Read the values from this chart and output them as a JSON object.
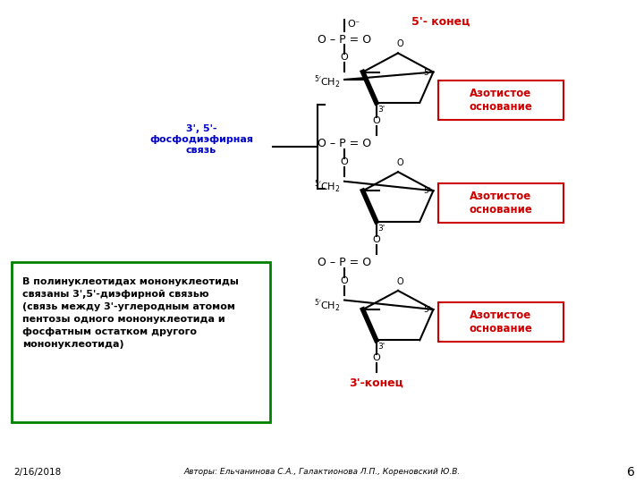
{
  "bg_color": "#ffffff",
  "fig_width": 7.2,
  "fig_height": 5.4,
  "dpi": 100,
  "text_5prime_label": "5'- конец",
  "text_5prime_color": "#cc0000",
  "text_3prime_label": "3'-конец",
  "text_3prime_color": "#cc0000",
  "azot_text": "Азотистое\nоснование",
  "azot_box_color": "#cc0000",
  "azot_box_facecolor": "#ffffff",
  "link_label": "3', 5'-\nфосфодиэфирная\nсвязь",
  "link_label_color": "#0000cc",
  "info_box_text": "В полинуклеотидах мононуклеотиды\nсвязаны 3',5'-диэфирной связью\n(связь между 3'-углеродным атомом\nпентозы одного мононуклеотида и\nфосфатным остатком другого\nмононуклеотида)",
  "info_box_color": "#008000",
  "footer_date": "2/16/2018",
  "footer_authors": "Авторы: Ельчанинова С.А., Галактионова Л.П., Кореновский Ю.В.",
  "footer_page": "6"
}
